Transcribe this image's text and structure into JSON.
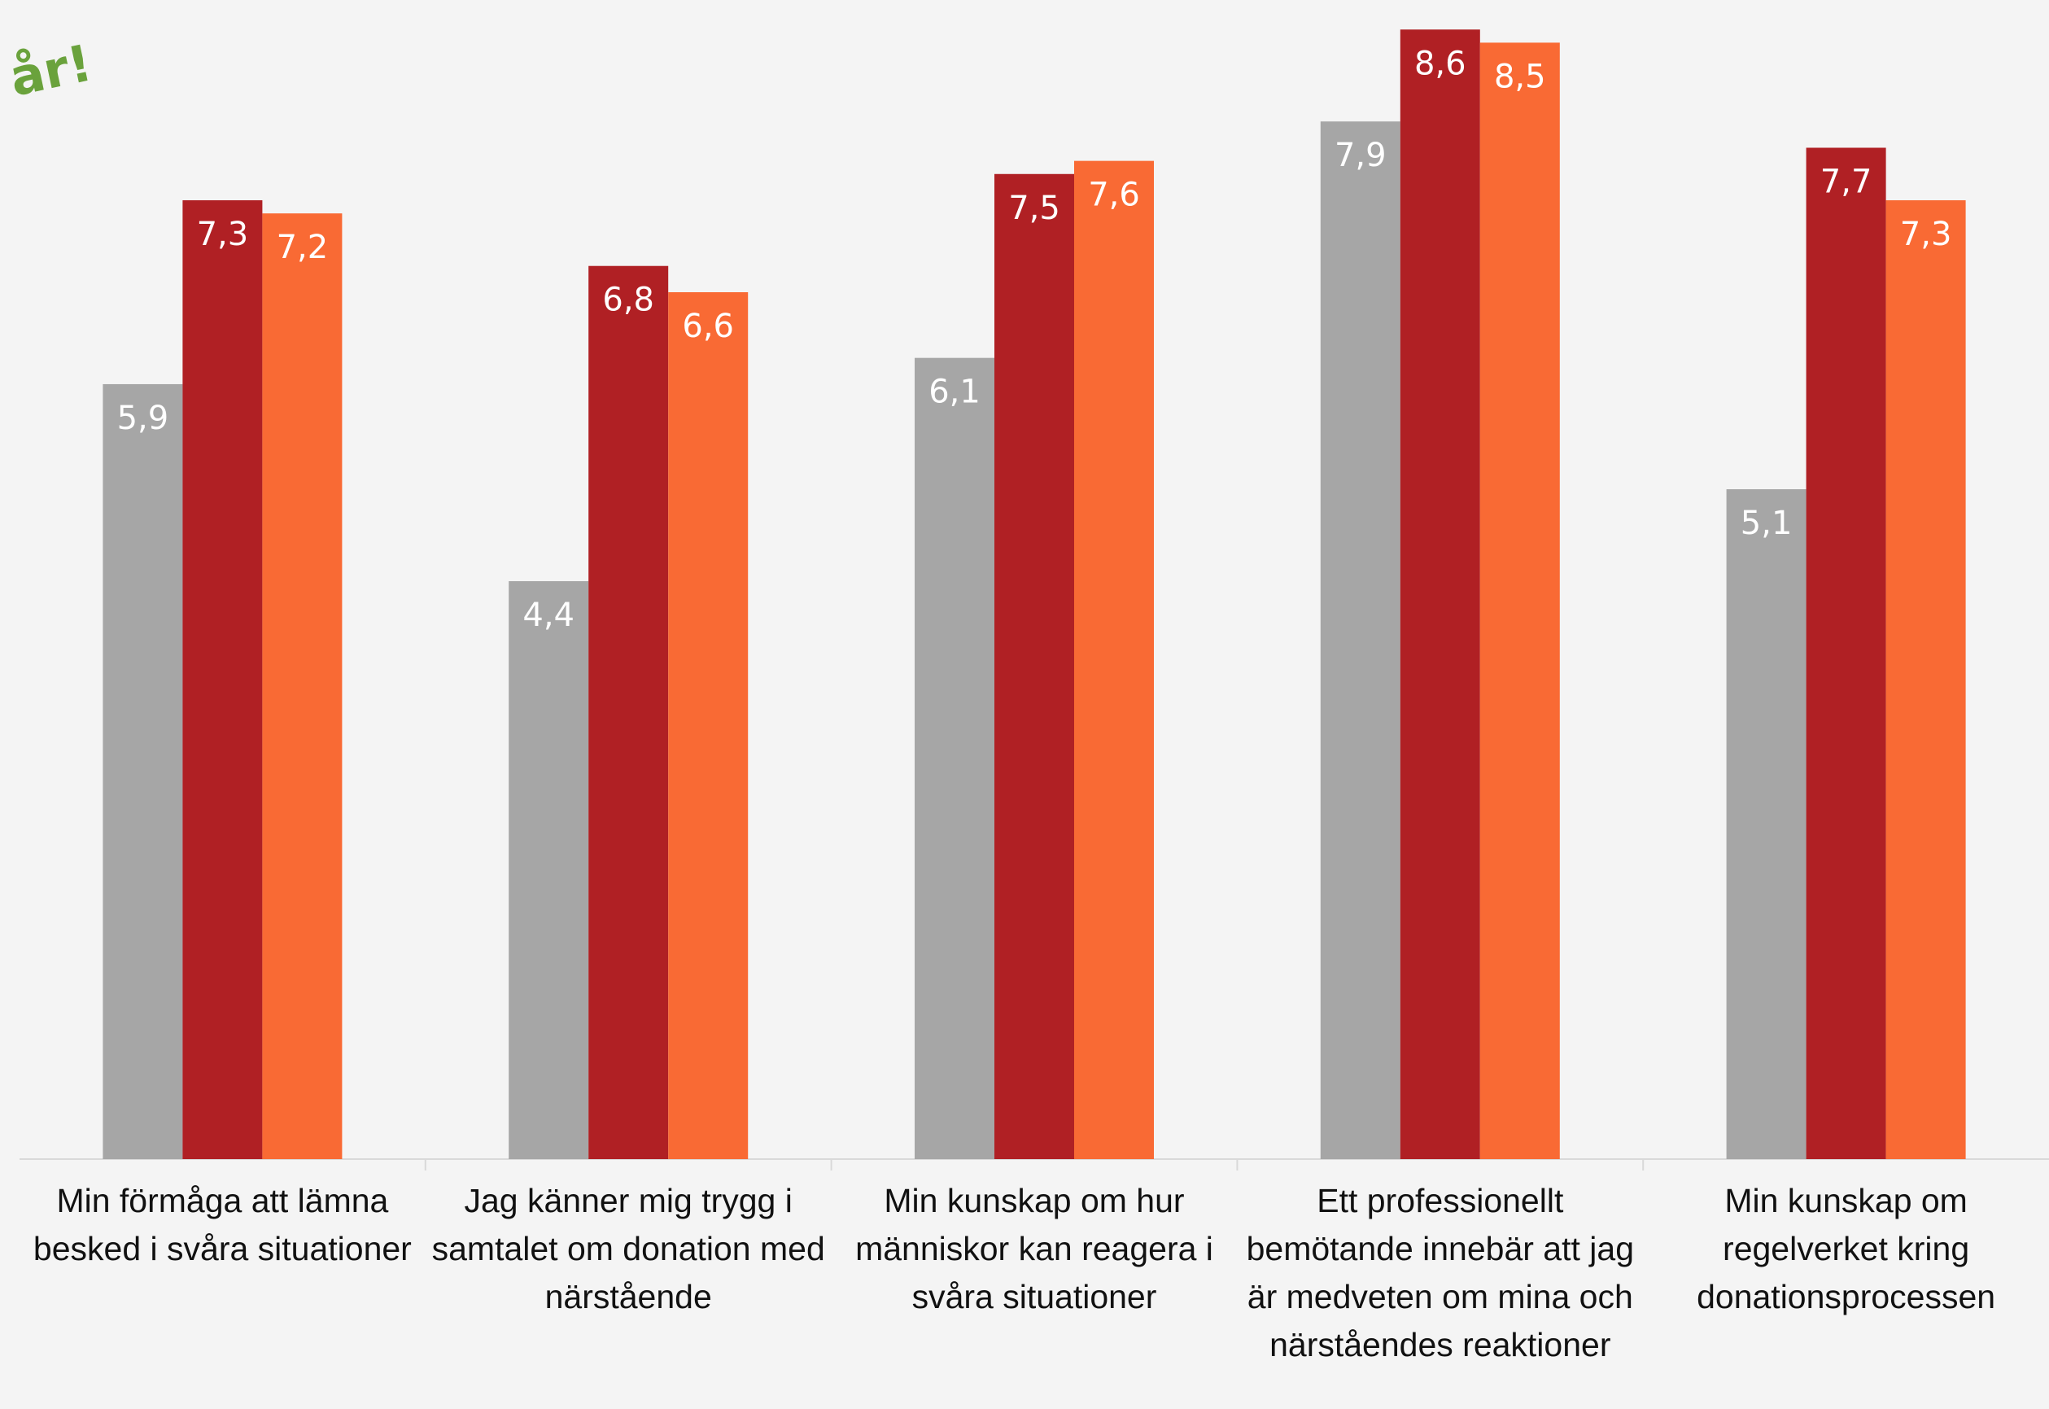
{
  "chart_data": {
    "type": "bar",
    "annotation": "år!",
    "categories": [
      "Min förmåga att lämna besked i svåra situationer",
      "Jag känner mig trygg i samtalet om donation med närstående",
      "Min kunskap om hur människor kan reagera i svåra situationer",
      "Ett professionellt bemötande innebär att jag är medveten om mina och närståendes reaktioner",
      "Min kunskap om regelverket kring donationsprocessen"
    ],
    "series": [
      {
        "color": "#a6a6a6",
        "values": [
          5.9,
          4.4,
          6.1,
          7.9,
          5.1
        ],
        "value_labels": [
          "5,9",
          "4,4",
          "6,1",
          "7,9",
          "5,1"
        ]
      },
      {
        "color": "#b02024",
        "values": [
          7.3,
          6.8,
          7.5,
          8.6,
          7.7
        ],
        "value_labels": [
          "7,3",
          "6,8",
          "7,5",
          "8,6",
          "7,7"
        ]
      },
      {
        "color": "#f96a34",
        "values": [
          7.2,
          6.6,
          7.6,
          8.5,
          7.3
        ],
        "value_labels": [
          "7,2",
          "6,6",
          "7,6",
          "8,5",
          "7,3"
        ]
      }
    ],
    "ylim": [
      0,
      8.8
    ]
  }
}
